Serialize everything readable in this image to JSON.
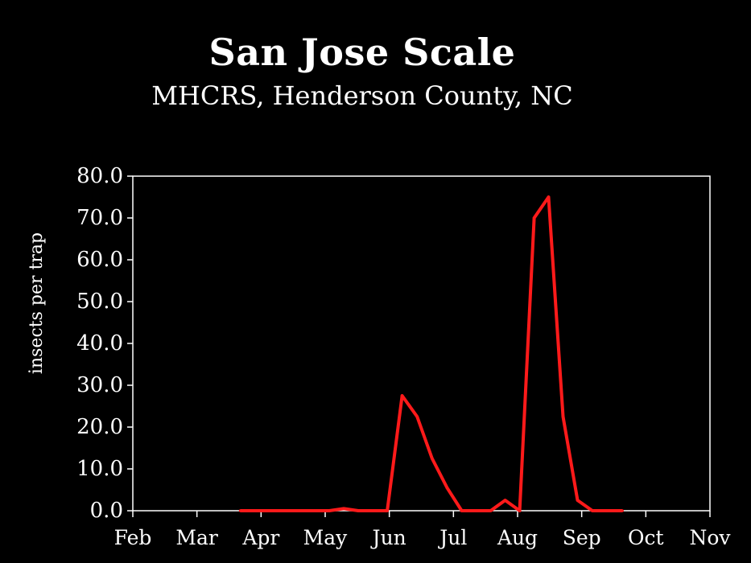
{
  "chart_data": {
    "type": "line",
    "title": "San Jose Scale",
    "subtitle": "MHCRS, Henderson County, NC",
    "ylabel": "insects per trap",
    "xlabel": "",
    "ylim": [
      0,
      80
    ],
    "y_ticks": [
      "0.0",
      "10.0",
      "20.0",
      "30.0",
      "40.0",
      "50.0",
      "60.0",
      "70.0",
      "80.0"
    ],
    "x_tick_labels": [
      "Feb",
      "Mar",
      "Apr",
      "May",
      "Jun",
      "Jul",
      "Aug",
      "Sep",
      "Oct",
      "Nov"
    ],
    "grid": false,
    "line_color": "#ff1a1a",
    "series": [
      {
        "x": [
          "Mar 22",
          "Mar 29",
          "Apr 5",
          "Apr 12",
          "Apr 19",
          "Apr 26",
          "May 3",
          "May 10",
          "May 17",
          "May 24",
          "May 31",
          "Jun 7",
          "Jun 14",
          "Jun 21",
          "Jun 28",
          "Jul 5",
          "Jul 12",
          "Jul 19",
          "Jul 26",
          "Aug 2",
          "Aug 9",
          "Aug 16",
          "Aug 23",
          "Aug 30",
          "Sep 6",
          "Sep 13",
          "Sep 20"
        ],
        "values": [
          0,
          0,
          0,
          0,
          0,
          0,
          0,
          0.5,
          0,
          0,
          0,
          27.5,
          22.5,
          12.5,
          5.5,
          0,
          0,
          0,
          2.5,
          0,
          70,
          75,
          22.5,
          2.5,
          0,
          0,
          0
        ]
      }
    ]
  }
}
